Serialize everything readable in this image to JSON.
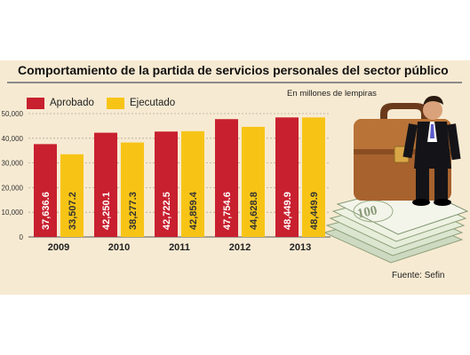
{
  "chart_data": {
    "type": "bar",
    "title": "Comportamiento de la partida de servicios personales del sector público",
    "subtitle": "En millones de lempiras",
    "source": "Fuente: Sefin",
    "categories": [
      "2009",
      "2010",
      "2011",
      "2012",
      "2013"
    ],
    "series": [
      {
        "name": "Aprobado",
        "color": "#c8202f",
        "values": [
          37636.6,
          42250.1,
          42722.5,
          47754.6,
          48449.9
        ],
        "labels": [
          "37,636.6",
          "42,250.1",
          "42,722.5",
          "47,754.6",
          "48,449.9"
        ]
      },
      {
        "name": "Ejecutado",
        "color": "#f7c416",
        "values": [
          33507.2,
          38277.3,
          42859.4,
          44628.8,
          48449.9
        ],
        "labels": [
          "33,507.2",
          "38,277.3",
          "42,859.4",
          "44,628.8",
          "48,449.9"
        ]
      }
    ],
    "yticks": [
      0,
      10000,
      20000,
      30000,
      40000,
      50000
    ],
    "ytick_labels": [
      "0",
      "10,000",
      "20,000",
      "30,000",
      "40,000",
      "50,000"
    ],
    "ylim": [
      0,
      50000
    ],
    "grid": true,
    "legend": "top-left"
  },
  "illustration": {
    "description_icons": [
      "briefcase-icon",
      "businessman-icon",
      "banknotes-icon"
    ],
    "banknote_numeral": "100"
  }
}
